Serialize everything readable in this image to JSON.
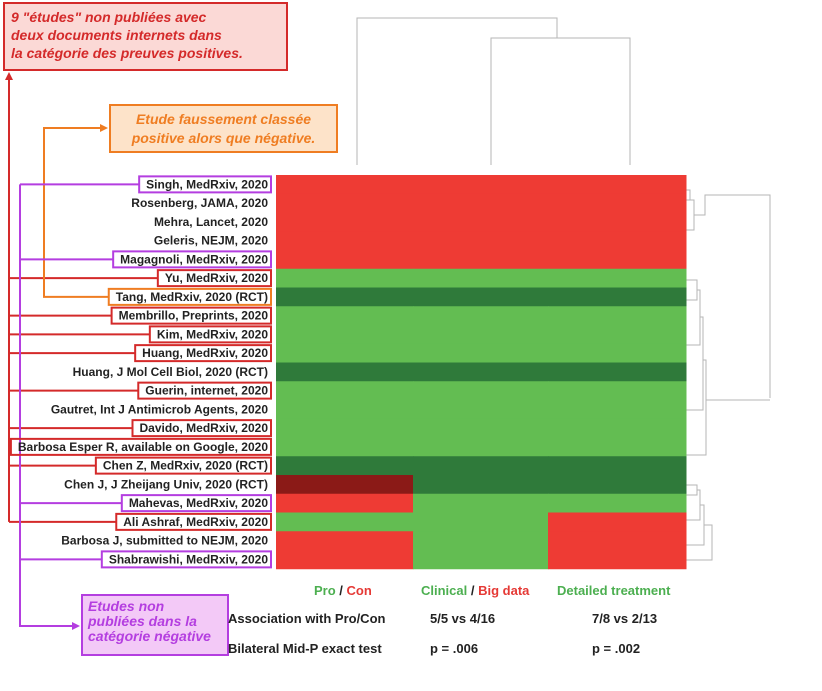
{
  "chart_data": {
    "type": "heatmap",
    "rows": [
      "Singh, MedRxiv, 2020",
      "Rosenberg, JAMA, 2020",
      "Mehra, Lancet, 2020",
      "Geleris, NEJM, 2020",
      "Magagnoli, MedRxiv, 2020",
      "Yu, MedRxiv, 2020",
      "Tang, MedRxiv, 2020 (RCT)",
      "Membrillo, Preprints, 2020",
      "Kim, MedRxiv, 2020",
      "Huang, MedRxiv, 2020",
      "Huang, J Mol Cell Biol, 2020 (RCT)",
      "Guerin, internet, 2020",
      "Gautret, Int J Antimicrob Agents, 2020",
      "Davido, MedRxiv, 2020",
      "Barbosa Esper R, available on Google, 2020",
      "Chen Z, MedRxiv, 2020 (RCT)",
      "Chen J, J Zheijang Univ, 2020 (RCT)",
      "Mahevas, MedRxiv, 2020",
      "Ali Ashraf, MedRxiv, 2020",
      "Barbosa J, submitted to NEJM, 2020",
      "Shabrawishi, MedRxiv, 2020"
    ],
    "columns": [
      {
        "parts": [
          {
            "text": "Pro",
            "color": "green"
          },
          {
            "text": " / ",
            "color": "dark"
          },
          {
            "text": "Con",
            "color": "red"
          }
        ]
      },
      {
        "parts": [
          {
            "text": "Clinical",
            "color": "green"
          },
          {
            "text": " / ",
            "color": "dark"
          },
          {
            "text": "Big data",
            "color": "red"
          }
        ]
      },
      {
        "parts": [
          {
            "text": "Detailed treatment",
            "color": "green"
          }
        ]
      }
    ],
    "cells": [
      [
        "C",
        "C",
        "C"
      ],
      [
        "C",
        "C",
        "C"
      ],
      [
        "C",
        "C",
        "C"
      ],
      [
        "C",
        "C",
        "C"
      ],
      [
        "C",
        "C",
        "C"
      ],
      [
        "P",
        "P",
        "P"
      ],
      [
        "D",
        "D",
        "D"
      ],
      [
        "P",
        "P",
        "P"
      ],
      [
        "P",
        "P",
        "P"
      ],
      [
        "P",
        "P",
        "P"
      ],
      [
        "D",
        "D",
        "D"
      ],
      [
        "P",
        "P",
        "P"
      ],
      [
        "P",
        "P",
        "P"
      ],
      [
        "P",
        "P",
        "P"
      ],
      [
        "P",
        "P",
        "P"
      ],
      [
        "D",
        "D",
        "D"
      ],
      [
        "X",
        "D",
        "D"
      ],
      [
        "C",
        "P",
        "P"
      ],
      [
        "P",
        "P",
        "C"
      ],
      [
        "C",
        "P",
        "C"
      ],
      [
        "C",
        "P",
        "C"
      ]
    ],
    "cell_colors": {
      "C": "#ee3b34",
      "P": "#63bd52",
      "D": "#2f7a3a",
      "X": "#8b1a17"
    },
    "stats": [
      {
        "label": "Association with Pro/Con",
        "values": [
          "5/5 vs 4/16",
          "7/8 vs 2/13"
        ]
      },
      {
        "label": "Bilateral Mid-P exact test",
        "values": [
          "p = .006",
          "p = .002"
        ]
      }
    ],
    "annotations": {
      "red_note": [
        "9 \"études\" non publiées avec",
        "deux documents internets dans",
        "la catégorie des preuves positives."
      ],
      "orange_note": [
        "Etude faussement classée",
        "positive alors que négative."
      ],
      "purple_note": [
        "Etudes non",
        "publiées dans la",
        "catégorie négative"
      ],
      "red_boxed_rows": [
        5,
        7,
        8,
        9,
        11,
        13,
        14,
        15,
        18
      ],
      "orange_boxed_rows": [
        6
      ],
      "purple_boxed_rows": [
        0,
        4,
        17,
        20
      ]
    }
  },
  "colors": {
    "red": "#d42a2a",
    "orange": "#ef7d22",
    "purple": "#b43ee0",
    "green_text": "#4caf50",
    "red_text": "#e53935"
  }
}
